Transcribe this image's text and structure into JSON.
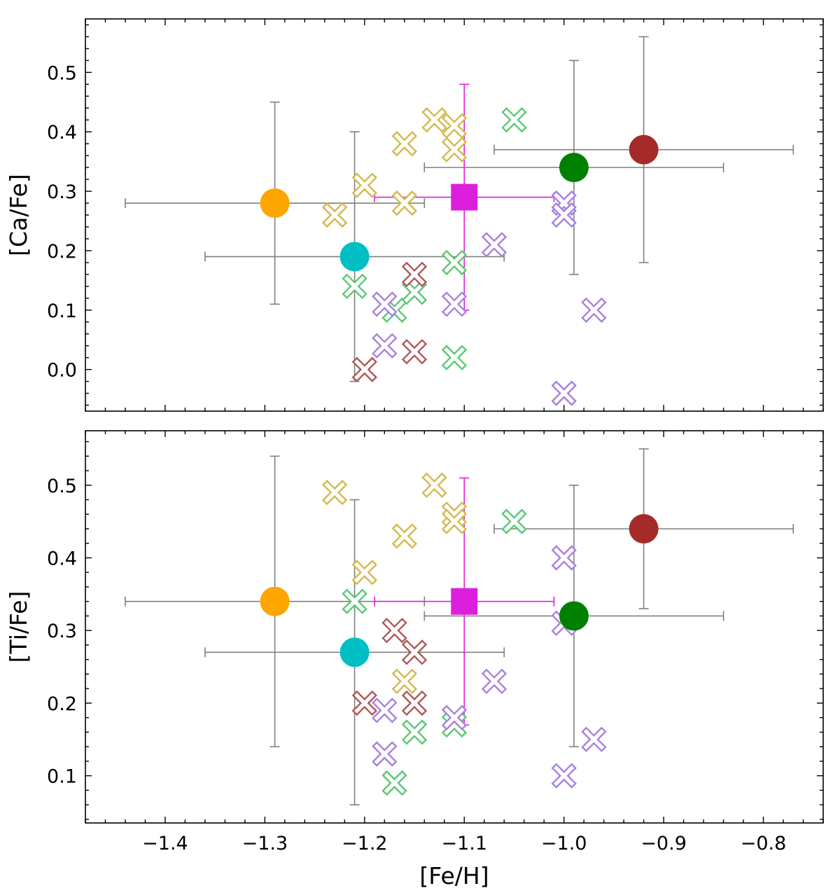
{
  "chart_data": [
    {
      "type": "scatter",
      "panel": "top",
      "ylabel": "[Ca/Fe]",
      "xlabel": "",
      "xlim": [
        -1.48,
        -0.74
      ],
      "ylim": [
        -0.07,
        0.59
      ],
      "xticks": [
        -1.4,
        -1.3,
        -1.2,
        -1.1,
        -1.0,
        -0.9,
        -0.8
      ],
      "xtick_labels": [
        "",
        "",
        "",
        "",
        "",
        "",
        ""
      ],
      "yticks": [
        0.0,
        0.1,
        0.2,
        0.3,
        0.4,
        0.5
      ],
      "ytick_labels": [
        "0.0",
        "0.1",
        "0.2",
        "0.3",
        "0.4",
        "0.5"
      ],
      "mean_points": [
        {
          "name": "orange",
          "marker": "circle",
          "color": "#FFA500",
          "x": -1.29,
          "y": 0.28,
          "xerr": 0.15,
          "yerr": 0.17
        },
        {
          "name": "cyan",
          "marker": "circle",
          "color": "#00BFC4",
          "x": -1.21,
          "y": 0.19,
          "xerr": 0.15,
          "yerr": 0.21
        },
        {
          "name": "magenta",
          "marker": "square",
          "color": "#DD1FDD",
          "x": -1.1,
          "y": 0.29,
          "xerr": 0.09,
          "yerr": 0.19
        },
        {
          "name": "green",
          "marker": "circle",
          "color": "#008000",
          "x": -0.99,
          "y": 0.34,
          "xerr": 0.15,
          "yerr": 0.18
        },
        {
          "name": "darkred",
          "marker": "circle",
          "color": "#A52A2A",
          "x": -0.92,
          "y": 0.37,
          "xerr": 0.15,
          "yerr": 0.19
        }
      ],
      "star_series": [
        {
          "name": "gold stars",
          "color": "#D4B94E",
          "points": [
            [
              -1.23,
              0.26
            ],
            [
              -1.2,
              0.31
            ],
            [
              -1.16,
              0.38
            ],
            [
              -1.16,
              0.28
            ],
            [
              -1.13,
              0.42
            ],
            [
              -1.11,
              0.41
            ],
            [
              -1.11,
              0.37
            ]
          ]
        },
        {
          "name": "green stars",
          "color": "#5BC974",
          "points": [
            [
              -1.21,
              0.14
            ],
            [
              -1.17,
              0.1
            ],
            [
              -1.15,
              0.13
            ],
            [
              -1.11,
              0.18
            ],
            [
              -1.11,
              0.02
            ],
            [
              -1.05,
              0.42
            ]
          ]
        },
        {
          "name": "red stars",
          "color": "#B15757",
          "points": [
            [
              -1.2,
              0.0
            ],
            [
              -1.15,
              0.16
            ],
            [
              -1.15,
              0.03
            ]
          ]
        },
        {
          "name": "purple stars",
          "color": "#A981DF",
          "points": [
            [
              -1.18,
              0.11
            ],
            [
              -1.18,
              0.04
            ],
            [
              -1.11,
              0.11
            ],
            [
              -1.07,
              0.21
            ],
            [
              -1.0,
              0.28
            ],
            [
              -1.0,
              0.26
            ],
            [
              -1.0,
              -0.04
            ],
            [
              -0.97,
              0.1
            ]
          ]
        }
      ]
    },
    {
      "type": "scatter",
      "panel": "bottom",
      "ylabel": "[Ti/Fe]",
      "xlabel": "[Fe/H]",
      "xlim": [
        -1.48,
        -0.74
      ],
      "ylim": [
        0.035,
        0.575
      ],
      "xticks": [
        -1.4,
        -1.3,
        -1.2,
        -1.1,
        -1.0,
        -0.9,
        -0.8
      ],
      "xtick_labels": [
        "−1.4",
        "−1.3",
        "−1.2",
        "−1.1",
        "−1.0",
        "−0.9",
        "−0.8"
      ],
      "yticks": [
        0.1,
        0.2,
        0.3,
        0.4,
        0.5
      ],
      "ytick_labels": [
        "0.1",
        "0.2",
        "0.3",
        "0.4",
        "0.5"
      ],
      "mean_points": [
        {
          "name": "orange",
          "marker": "circle",
          "color": "#FFA500",
          "x": -1.29,
          "y": 0.34,
          "xerr": 0.15,
          "yerr": 0.2
        },
        {
          "name": "cyan",
          "marker": "circle",
          "color": "#00BFC4",
          "x": -1.21,
          "y": 0.27,
          "xerr": 0.15,
          "yerr": 0.21
        },
        {
          "name": "magenta",
          "marker": "square",
          "color": "#DD1FDD",
          "x": -1.1,
          "y": 0.34,
          "xerr": 0.09,
          "yerr": 0.17
        },
        {
          "name": "green",
          "marker": "circle",
          "color": "#008000",
          "x": -0.99,
          "y": 0.32,
          "xerr": 0.15,
          "yerr": 0.18
        },
        {
          "name": "darkred",
          "marker": "circle",
          "color": "#A52A2A",
          "x": -0.92,
          "y": 0.44,
          "xerr": 0.15,
          "yerr": 0.11
        }
      ],
      "star_series": [
        {
          "name": "gold stars",
          "color": "#D4B94E",
          "points": [
            [
              -1.23,
              0.49
            ],
            [
              -1.2,
              0.38
            ],
            [
              -1.16,
              0.43
            ],
            [
              -1.16,
              0.23
            ],
            [
              -1.13,
              0.5
            ],
            [
              -1.11,
              0.46
            ],
            [
              -1.11,
              0.45
            ]
          ]
        },
        {
          "name": "green stars",
          "color": "#5BC974",
          "points": [
            [
              -1.21,
              0.34
            ],
            [
              -1.17,
              0.09
            ],
            [
              -1.15,
              0.16
            ],
            [
              -1.11,
              0.17
            ],
            [
              -1.05,
              0.45
            ]
          ]
        },
        {
          "name": "red stars",
          "color": "#B15757",
          "points": [
            [
              -1.2,
              0.2
            ],
            [
              -1.17,
              0.3
            ],
            [
              -1.15,
              0.27
            ],
            [
              -1.15,
              0.2
            ]
          ]
        },
        {
          "name": "purple stars",
          "color": "#A981DF",
          "points": [
            [
              -1.18,
              0.19
            ],
            [
              -1.18,
              0.13
            ],
            [
              -1.11,
              0.18
            ],
            [
              -1.07,
              0.23
            ],
            [
              -1.0,
              0.4
            ],
            [
              -1.0,
              0.31
            ],
            [
              -1.0,
              0.1
            ],
            [
              -0.97,
              0.15
            ]
          ]
        }
      ]
    }
  ]
}
